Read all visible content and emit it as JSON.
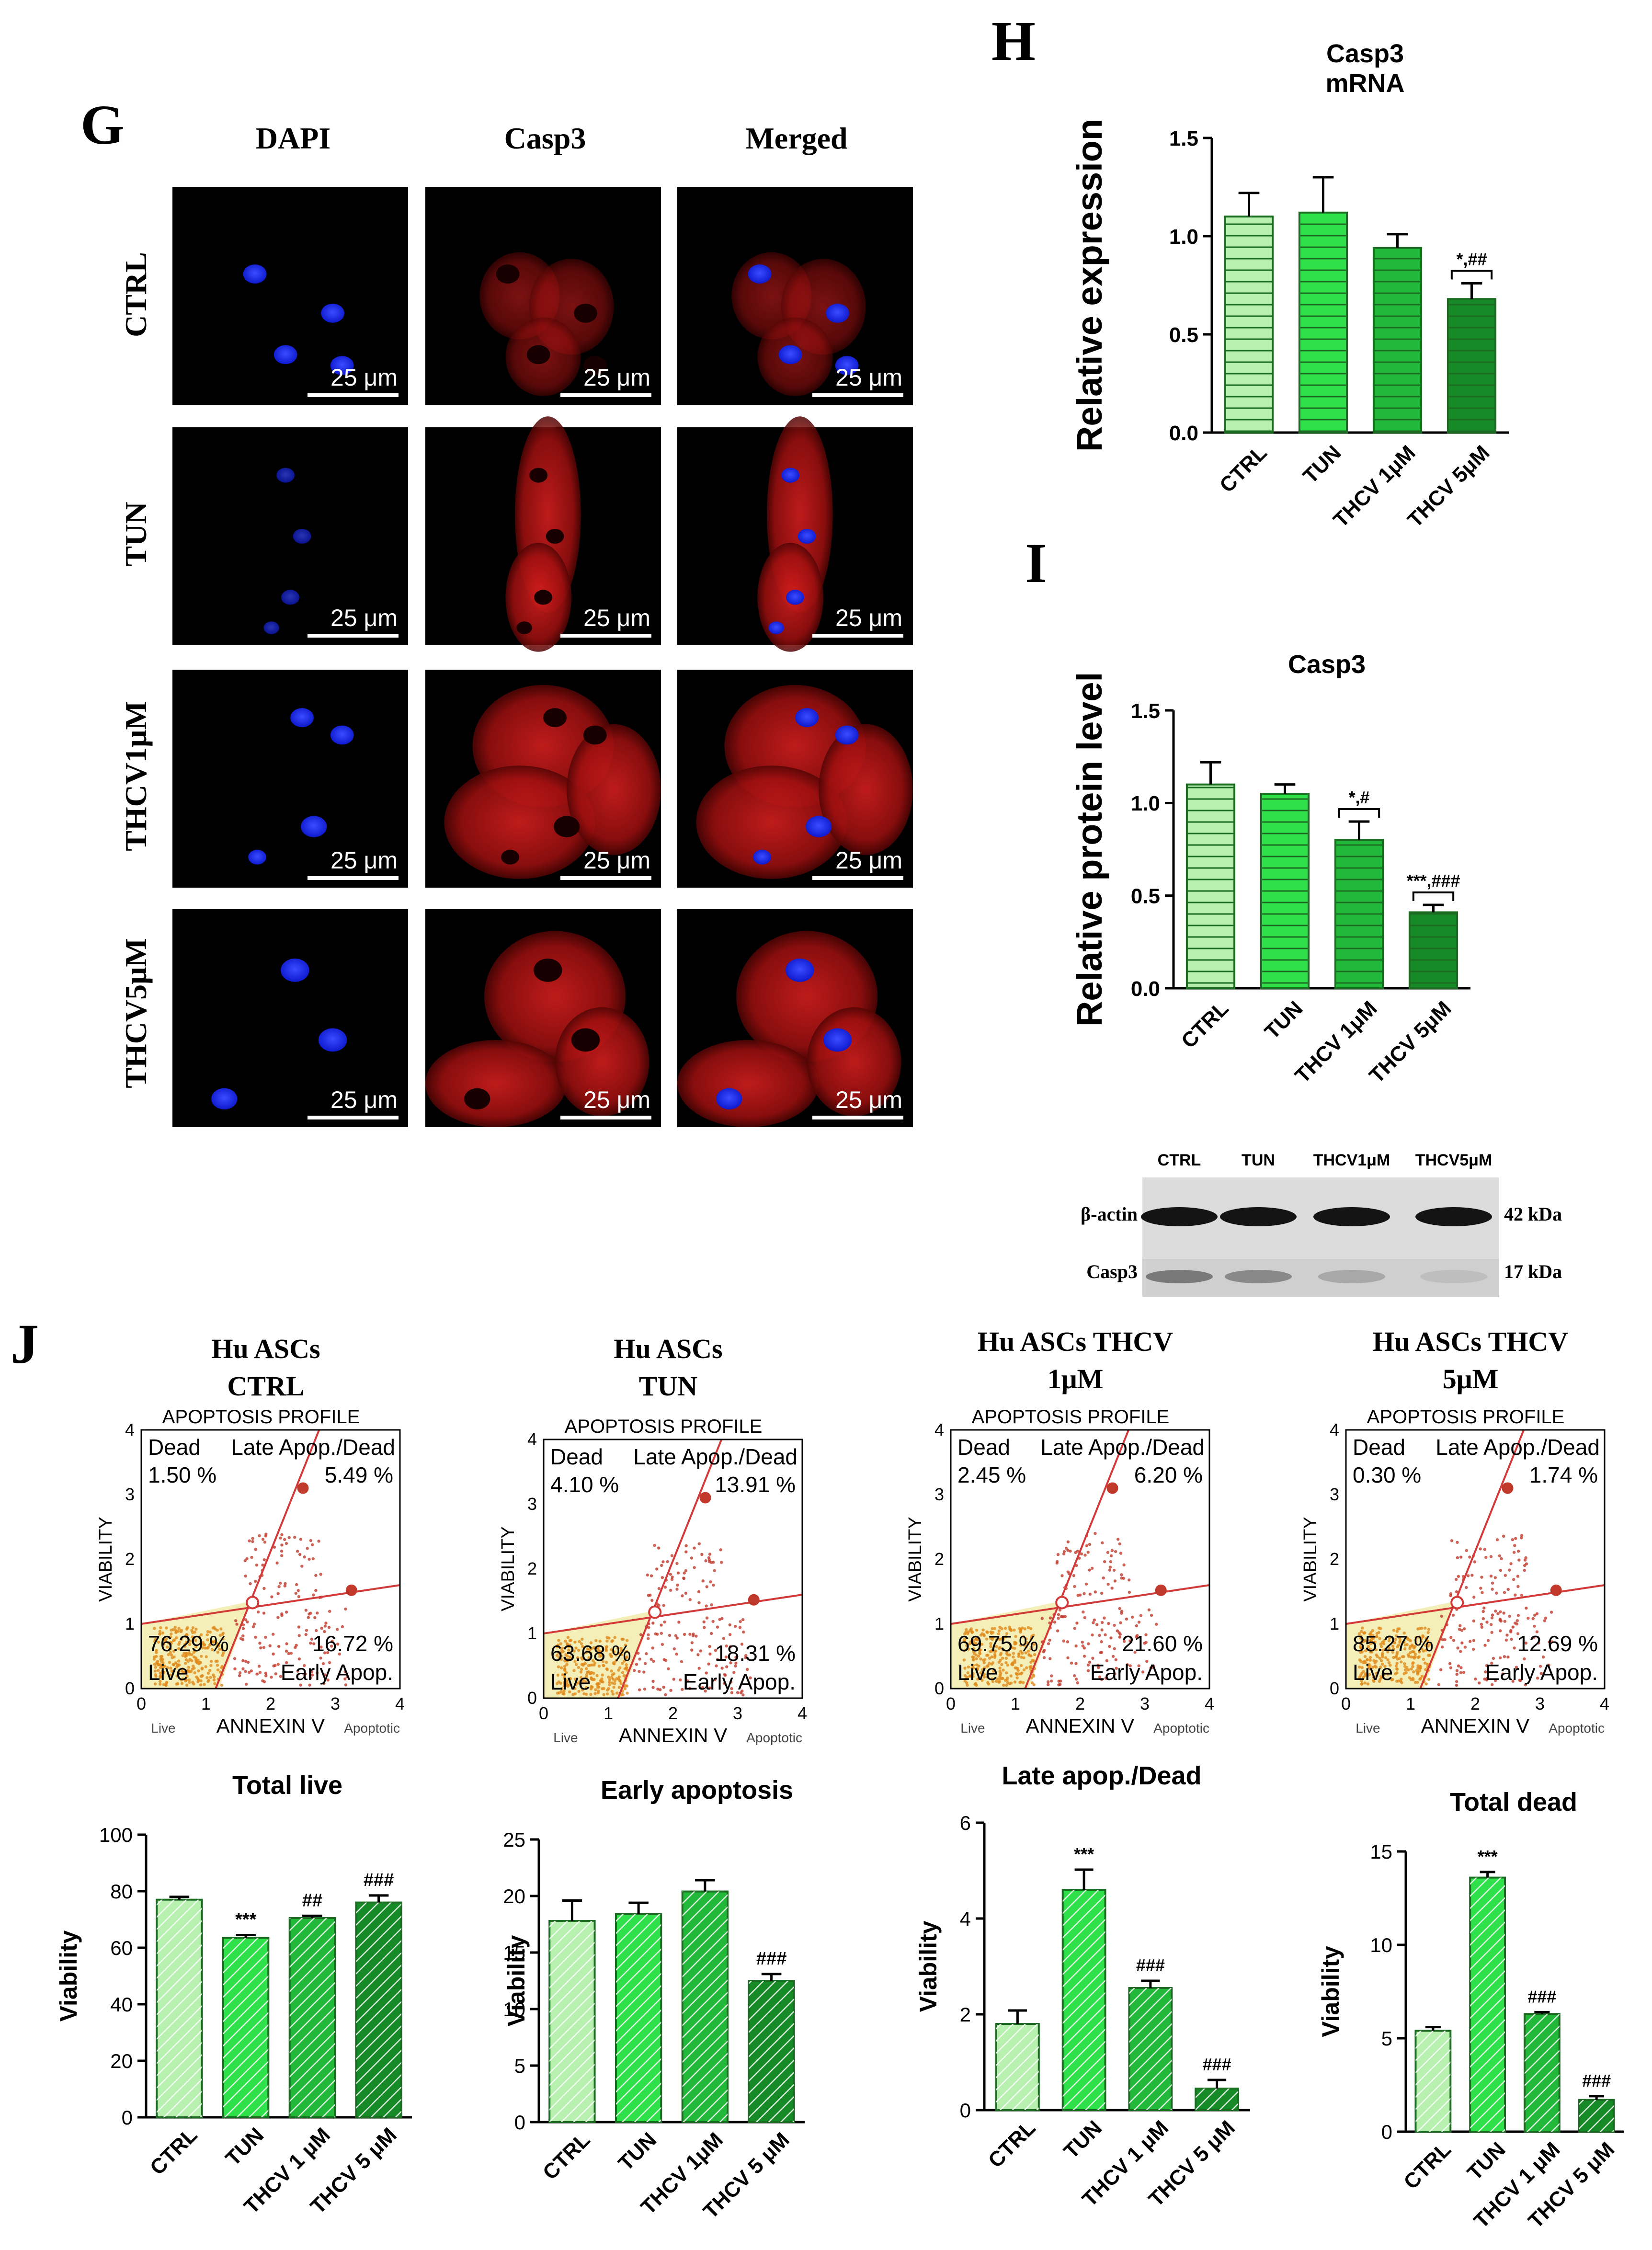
{
  "panel_g": {
    "letter": "G",
    "columns": [
      "DAPI",
      "Casp3",
      "Merged"
    ],
    "rows": [
      "CTRL",
      "TUN",
      "THCV1μM",
      "THCV5μM"
    ],
    "scale_bar": "25 μm"
  },
  "western_blot": {
    "lanes": [
      "CTRL",
      "TUN",
      "THCV1μM",
      "THCV5μM"
    ],
    "bands": [
      {
        "name": "β-actin",
        "size": "42 kDa"
      },
      {
        "name": "Casp3",
        "size": "17 kDa"
      }
    ]
  },
  "flow_common": {
    "profile_title": "APOPTOSIS PROFILE",
    "x_label": "ANNEXIN V",
    "y_label": "VIABILITY",
    "x_left_word": "Live",
    "x_right_word": "Apoptotic",
    "q_dead": "Dead",
    "q_late": "Late Apop./Dead",
    "q_live": "Live",
    "q_early": "Early Apop."
  },
  "panel_j": {
    "letter": "J",
    "flow_plots": [
      {
        "title_line1": "Hu ASCs",
        "title_line2": "CTRL",
        "dead_pct": "1.50 %",
        "late_pct": "5.49 %",
        "live_pct": "76.29 %",
        "early_pct": "16.72 %"
      },
      {
        "title_line1": "Hu ASCs",
        "title_line2": "TUN",
        "dead_pct": "4.10 %",
        "late_pct": "13.91 %",
        "live_pct": "63.68 %",
        "early_pct": "18.31 %"
      },
      {
        "title_line1": "Hu ASCs   THCV",
        "title_line2": "1μM",
        "dead_pct": "2.45 %",
        "late_pct": "6.20 %",
        "live_pct": "69.75 %",
        "early_pct": "21.60 %"
      },
      {
        "title_line1": "Hu ASCs   THCV",
        "title_line2": "5μM",
        "dead_pct": "0.30 %",
        "late_pct": "1.74 %",
        "live_pct": "85.27 %",
        "early_pct": "12.69 %"
      }
    ]
  },
  "colors": {
    "bar_fill": [
      "#b8f0b0",
      "#2ee04a",
      "#22b83a",
      "#178a28"
    ],
    "bar_stroke": "#1c6b22",
    "gate_line": "#d23a3a",
    "live_region": "#f4efb8",
    "dot": "#c0392b",
    "dapi": "#1a2cff",
    "casp": "#d01818"
  },
  "chart_data": [
    {
      "id": "H",
      "letter": "H",
      "type": "bar",
      "title": "Casp3\nmRNA",
      "ylabel": "Relative expression",
      "categories": [
        "CTRL",
        "TUN",
        "THCV 1μM",
        "THCV 5μM"
      ],
      "values": [
        1.1,
        1.12,
        0.94,
        0.68
      ],
      "errors": [
        0.12,
        0.18,
        0.07,
        0.08
      ],
      "ylim": [
        0,
        1.5
      ],
      "yticks": [
        "0.0",
        "0.5",
        "1.0",
        "1.5"
      ],
      "significance": [
        {
          "index": 3,
          "label": "*,##",
          "bracket": true
        }
      ],
      "pattern": "horizontal"
    },
    {
      "id": "I",
      "letter": "I",
      "type": "bar",
      "title": "Casp3",
      "ylabel": "Relative protein level",
      "categories": [
        "CTRL",
        "TUN",
        "THCV 1μM",
        "THCV 5μM"
      ],
      "values": [
        1.1,
        1.05,
        0.8,
        0.41
      ],
      "errors": [
        0.12,
        0.05,
        0.1,
        0.04
      ],
      "ylim": [
        0,
        1.5
      ],
      "yticks": [
        "0.0",
        "0.5",
        "1.0",
        "1.5"
      ],
      "significance": [
        {
          "index": 2,
          "label": "*,#",
          "bracket": true
        },
        {
          "index": 3,
          "label": "***,###",
          "bracket": true
        }
      ],
      "pattern": "horizontal"
    },
    {
      "id": "J1",
      "type": "bar",
      "title": "Total live",
      "ylabel": "Viability",
      "categories": [
        "CTRL",
        "TUN",
        "THCV 1 μM",
        "THCV 5 μM"
      ],
      "values": [
        77,
        63.5,
        70.5,
        76
      ],
      "errors": [
        1.0,
        1.0,
        0.8,
        2.5
      ],
      "ylim": [
        0,
        100
      ],
      "yticks": [
        "0",
        "20",
        "40",
        "60",
        "80",
        "100"
      ],
      "significance": [
        {
          "index": 1,
          "label": "***",
          "bracket": false
        },
        {
          "index": 2,
          "label": "##",
          "bracket": false
        },
        {
          "index": 3,
          "label": "###",
          "bracket": false
        }
      ],
      "pattern": "diagonal"
    },
    {
      "id": "J2",
      "type": "bar",
      "title": "Early apoptosis",
      "ylabel": "Viability",
      "categories": [
        "CTRL",
        "TUN",
        "THCV 1μM",
        "THCV 5 μM"
      ],
      "values": [
        17.8,
        18.4,
        20.4,
        12.5
      ],
      "errors": [
        1.8,
        1.0,
        1.0,
        0.6
      ],
      "ylim": [
        0,
        25
      ],
      "yticks": [
        "0",
        "5",
        "10",
        "15",
        "20",
        "25"
      ],
      "significance": [
        {
          "index": 3,
          "label": "###",
          "bracket": false
        }
      ],
      "pattern": "diagonal"
    },
    {
      "id": "J3",
      "type": "bar",
      "title": "Late apop./Dead",
      "ylabel": "Viability",
      "categories": [
        "CTRL",
        "TUN",
        "THCV 1 μM",
        "THCV 5 μM"
      ],
      "values": [
        1.8,
        4.6,
        2.55,
        0.45
      ],
      "errors": [
        0.28,
        0.42,
        0.15,
        0.18
      ],
      "ylim": [
        0,
        6
      ],
      "yticks": [
        "0",
        "2",
        "4",
        "6"
      ],
      "significance": [
        {
          "index": 1,
          "label": "***",
          "bracket": false
        },
        {
          "index": 2,
          "label": "###",
          "bracket": false
        },
        {
          "index": 3,
          "label": "###",
          "bracket": false
        }
      ],
      "pattern": "diagonal"
    },
    {
      "id": "J4",
      "type": "bar",
      "title": "Total dead",
      "ylabel": "Viability",
      "categories": [
        "CTRL",
        "TUN",
        "THCV 1 μM",
        "THCV 5 μM"
      ],
      "values": [
        5.4,
        13.6,
        6.3,
        1.7
      ],
      "errors": [
        0.2,
        0.3,
        0.1,
        0.2
      ],
      "ylim": [
        0,
        15
      ],
      "yticks": [
        "0",
        "5",
        "10",
        "15"
      ],
      "significance": [
        {
          "index": 1,
          "label": "***",
          "bracket": false
        },
        {
          "index": 2,
          "label": "###",
          "bracket": false
        },
        {
          "index": 3,
          "label": "###",
          "bracket": false
        }
      ],
      "pattern": "diagonal"
    }
  ]
}
